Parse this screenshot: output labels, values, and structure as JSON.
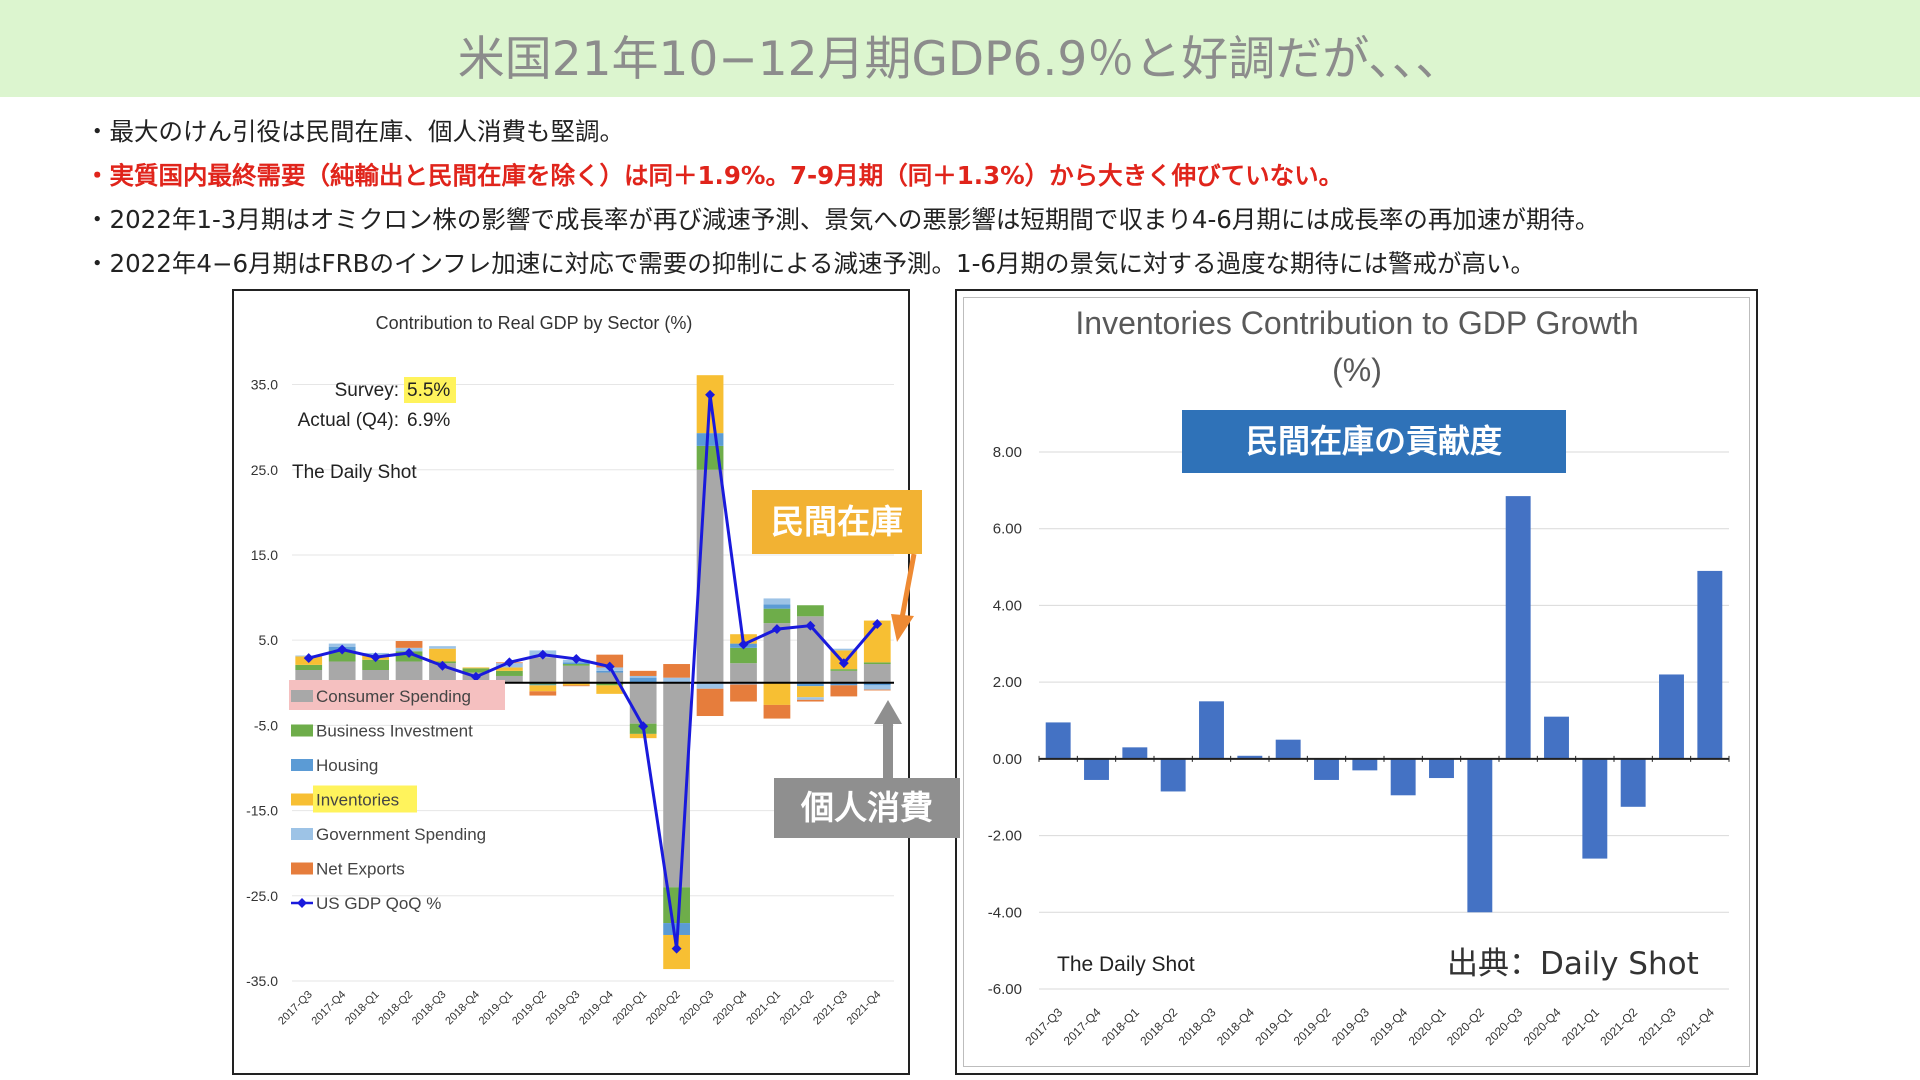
{
  "banner": {
    "title": "米国21年10−12月期GDP6.9％と好調だが、、、"
  },
  "bullets": [
    "・最大のけん引役は民間在庫、個人消費も堅調。",
    "・実質国内最終需要（純輸出と民間在庫を除く）は同＋1.9%。7-9月期（同＋1.3%）から大きく伸びていない。",
    "・2022年1-3月期はオミクロン株の影響で成長率が再び減速予測、景気への悪影響は短期間で収まり4-6月期には成長率の再加速が期待。",
    "・2022年4−6月期はFRBのインフレ加速に対応で需要の抑制による減速予測。1-6月期の景気に対する過度な期待には警戒が高い。"
  ],
  "callouts": {
    "inventories": "民間在庫",
    "consumer": "個人消費",
    "right_label": "民間在庫の貢献度"
  },
  "source": "出典：Daily Shot",
  "colors": {
    "banner_bg": "#dcf5cf",
    "consumer": "#a8a8a8",
    "business": "#6ead4a",
    "housing": "#5b9bd5",
    "inventories": "#f7bf33",
    "government": "#9dc3e6",
    "net_exports": "#e67d3c",
    "gdp_line": "#1a1adc",
    "right_bars": "#4472c4",
    "red_text": "#e0241b"
  },
  "chart_data": [
    {
      "type": "bar",
      "stacked": true,
      "title": "Contribution to Real GDP by Sector (%)",
      "annotations": {
        "survey_label": "Survey:",
        "survey_value": "5.5%",
        "actual_label": "Actual (Q4):",
        "actual_value": "6.9%",
        "logo": "The Daily Shot"
      },
      "categories": [
        "2017-Q3",
        "2017-Q4",
        "2018-Q1",
        "2018-Q2",
        "2018-Q3",
        "2018-Q4",
        "2019-Q1",
        "2019-Q2",
        "2019-Q3",
        "2019-Q4",
        "2020-Q1",
        "2020-Q2",
        "2020-Q3",
        "2020-Q4",
        "2021-Q1",
        "2021-Q2",
        "2021-Q3",
        "2021-Q4"
      ],
      "ylim": [
        -35,
        38
      ],
      "yticks": [
        "35.0",
        "25.0",
        "15.0",
        "5.0",
        "-5.0",
        "-15.0",
        "-25.0",
        "-35.0"
      ],
      "legend_position": "bottom-left",
      "series": [
        {
          "name": "Consumer Spending",
          "values": [
            1.5,
            2.5,
            1.5,
            2.5,
            2.3,
            1.2,
            0.8,
            3.0,
            2.0,
            1.2,
            -4.8,
            -24.0,
            25.0,
            2.3,
            7.0,
            7.8,
            1.4,
            2.2
          ]
        },
        {
          "name": "Business Investment",
          "values": [
            0.6,
            1.3,
            1.2,
            1.2,
            0.2,
            0.5,
            0.6,
            -0.2,
            0.2,
            -0.3,
            -1.2,
            -4.2,
            2.8,
            1.8,
            1.7,
            1.3,
            0.2,
            0.2
          ]
        },
        {
          "name": "Housing",
          "values": [
            -0.1,
            0.4,
            -0.2,
            -0.3,
            -0.1,
            -0.2,
            0.0,
            -0.1,
            0.2,
            0.2,
            0.6,
            -1.4,
            1.5,
            0.5,
            0.5,
            -0.4,
            -0.3,
            -0.3
          ]
        },
        {
          "name": "Inventories",
          "values": [
            1.0,
            -0.8,
            0.5,
            -1.2,
            1.5,
            0.1,
            0.4,
            -0.7,
            -0.3,
            -1.0,
            -0.5,
            -4.0,
            6.8,
            1.1,
            -2.6,
            -1.3,
            2.2,
            4.9
          ]
        },
        {
          "name": "Government Spending",
          "values": [
            0.1,
            0.4,
            0.3,
            0.4,
            0.3,
            -0.1,
            0.5,
            0.8,
            0.3,
            0.4,
            0.2,
            0.6,
            -0.7,
            -0.2,
            0.7,
            -0.3,
            0.2,
            -0.5
          ]
        },
        {
          "name": "Net Exports",
          "values": [
            -0.2,
            -0.1,
            0.0,
            0.8,
            -1.9,
            -0.6,
            0.1,
            -0.5,
            -0.1,
            1.5,
            0.6,
            1.6,
            -3.2,
            -2.0,
            -1.6,
            -0.2,
            -1.3,
            -0.1
          ]
        }
      ],
      "line": {
        "name": "US GDP QoQ %",
        "values": [
          2.9,
          3.9,
          3.0,
          3.5,
          2.0,
          0.7,
          2.4,
          3.3,
          2.8,
          1.9,
          -5.1,
          -31.2,
          33.8,
          4.5,
          6.3,
          6.7,
          2.3,
          6.9
        ]
      }
    },
    {
      "type": "bar",
      "title": "Inventories Contribution to GDP Growth (%)",
      "annotations": {
        "logo": "The Daily Shot"
      },
      "categories": [
        "2017-Q3",
        "2017-Q4",
        "2018-Q1",
        "2018-Q2",
        "2018-Q3",
        "2018-Q4",
        "2019-Q1",
        "2019-Q2",
        "2019-Q3",
        "2019-Q4",
        "2020-Q1",
        "2020-Q2",
        "2020-Q3",
        "2020-Q4",
        "2021-Q1",
        "2021-Q2",
        "2021-Q3",
        "2021-Q4"
      ],
      "values": [
        0.95,
        -0.55,
        0.3,
        -0.85,
        1.5,
        0.08,
        0.5,
        -0.55,
        -0.3,
        -0.95,
        -0.5,
        -4.0,
        6.85,
        1.1,
        -2.6,
        -1.25,
        2.2,
        4.9
      ],
      "ylim": [
        -6,
        8
      ],
      "yticks": [
        "8.00",
        "6.00",
        "4.00",
        "2.00",
        "0.00",
        "-2.00",
        "-4.00",
        "-6.00"
      ]
    }
  ]
}
